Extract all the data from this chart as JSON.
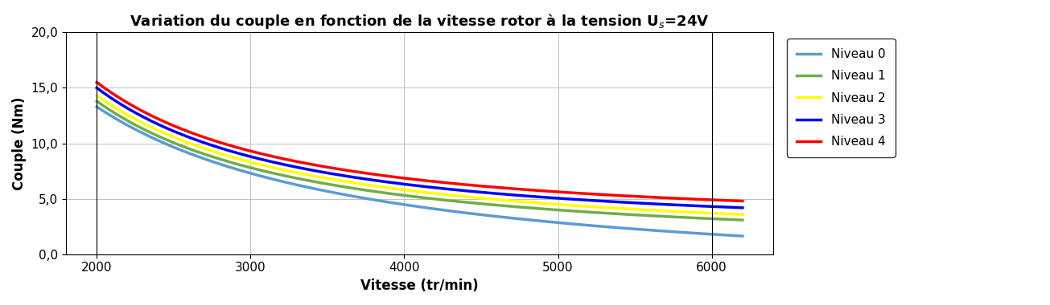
{
  "title": "Variation du couple en fonction de la vitesse rotor à la tension U$_s$=24V",
  "xlabel": "Vitesse (tr/min)",
  "ylabel": "Couple (Nm)",
  "xlim": [
    1800,
    6400
  ],
  "ylim": [
    0.0,
    20.0
  ],
  "x_ticks": [
    2000,
    3000,
    4000,
    5000,
    6000
  ],
  "y_ticks": [
    0.0,
    5.0,
    10.0,
    15.0,
    20.0
  ],
  "vlines": [
    2000,
    6000
  ],
  "levels": [
    {
      "label": "Niveau 0",
      "color": "#5B9BD5",
      "A": 24200,
      "B": 1.3
    },
    {
      "label": "Niveau 1",
      "color": "#70AD47",
      "A": 25200,
      "B": 1.8
    },
    {
      "label": "Niveau 2",
      "color": "#FFFF00",
      "A": 26200,
      "B": 2.3
    },
    {
      "label": "Niveau 3",
      "color": "#0000FF",
      "A": 27200,
      "B": 2.8
    },
    {
      "label": "Niveau 4",
      "color": "#FF0000",
      "A": 28200,
      "B": 3.3
    }
  ],
  "x_start": 2000,
  "x_end": 6200,
  "n_points": 500,
  "linewidth": 2.5,
  "background_color": "#FFFFFF",
  "grid_color": "#C0C0C0",
  "title_fontsize": 13,
  "label_fontsize": 12,
  "tick_fontsize": 11,
  "legend_fontsize": 11
}
